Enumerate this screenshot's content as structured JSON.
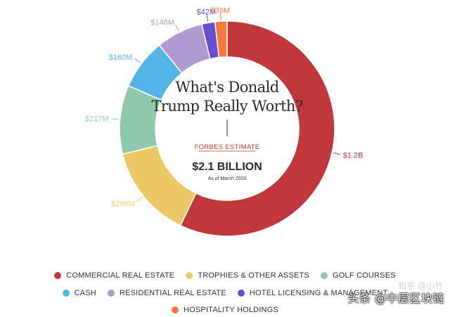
{
  "chart_data": {
    "type": "pie",
    "title": "What's Donald Trump Really Worth?",
    "subtitle": "FORBES ESTIMATE",
    "total_label": "$2.1 BILLION",
    "date_label": "As of March 2020",
    "slices": [
      {
        "name": "COMMERCIAL REAL ESTATE",
        "value": 1200,
        "label": "$1.2B",
        "color": "#c1373a"
      },
      {
        "name": "TROPHIES & OTHER ASSETS",
        "value": 295,
        "label": "$295M",
        "color": "#edc965"
      },
      {
        "name": "GOLF COURSES",
        "value": 217,
        "label": "$217M",
        "color": "#8ec9ab"
      },
      {
        "name": "CASH",
        "value": 160,
        "label": "$160M",
        "color": "#53b4e5"
      },
      {
        "name": "RESIDENTIAL REAL ESTATE",
        "value": 148,
        "label": "$148M",
        "color": "#b09ad2"
      },
      {
        "name": "HOTEL LICENSING & MANAGEMENT",
        "value": 42,
        "label": "$42M",
        "color": "#6a4ecf"
      },
      {
        "name": "HOSPITALITY HOLDINGS",
        "value": 38,
        "label": "$38M",
        "color": "#f4793c"
      }
    ],
    "legend_placement": "bottom"
  },
  "watermark": "头条 @中层区块链",
  "watermark_faint": "知乎 @小竹"
}
